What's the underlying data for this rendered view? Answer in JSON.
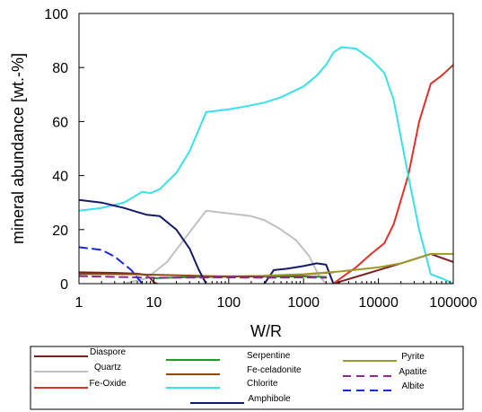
{
  "chart_data": {
    "type": "line",
    "xlabel": "W/R",
    "ylabel": "mineral abundance [wt.-%]",
    "x_scale": "log",
    "xlim": [
      1,
      100000
    ],
    "ylim": [
      0,
      100
    ],
    "x_ticks": [
      1,
      10,
      100,
      1000,
      10000,
      100000
    ],
    "x_tick_labels": [
      "1",
      "10",
      "100",
      "1000",
      "10000",
      "100000"
    ],
    "y_ticks": [
      0,
      20,
      40,
      60,
      80,
      100
    ],
    "y_tick_labels": [
      "0",
      "20",
      "40",
      "60",
      "80",
      "100"
    ],
    "grid": false,
    "legend_position": "bottom",
    "series": [
      {
        "name": "Diaspore",
        "color": "#7b2020",
        "dash": "solid",
        "points": [
          [
            1,
            4.2
          ],
          [
            3,
            4
          ],
          [
            6,
            3.7
          ],
          [
            8,
            3.2
          ],
          [
            9,
            2
          ],
          [
            10,
            0.5
          ],
          [
            11,
            0
          ]
        ],
        "points2": [
          [
            2500,
            0
          ],
          [
            5000,
            2.5
          ],
          [
            10000,
            5
          ],
          [
            20000,
            7.5
          ],
          [
            50000,
            11
          ],
          [
            100000,
            8
          ]
        ]
      },
      {
        "name": "Quartz",
        "color": "#c0c0c0",
        "dash": "solid",
        "points": [
          [
            4,
            0
          ],
          [
            8,
            2
          ],
          [
            15,
            8
          ],
          [
            30,
            19
          ],
          [
            50,
            27
          ],
          [
            100,
            26
          ],
          [
            200,
            25
          ],
          [
            300,
            23.5
          ],
          [
            500,
            20
          ],
          [
            800,
            16
          ],
          [
            1200,
            10
          ],
          [
            1600,
            3
          ],
          [
            2000,
            0
          ]
        ]
      },
      {
        "name": "Fe-Oxide",
        "color": "#e0302a",
        "dash": "solid",
        "points": [
          [
            2500,
            0
          ],
          [
            3500,
            3
          ],
          [
            5000,
            6
          ],
          [
            8000,
            11
          ],
          [
            12000,
            15
          ],
          [
            16000,
            22
          ],
          [
            25000,
            40
          ],
          [
            35000,
            60
          ],
          [
            50000,
            74
          ],
          [
            70000,
            77
          ],
          [
            100000,
            81
          ]
        ]
      },
      {
        "name": "Serpentine",
        "color": "#1f9a2a",
        "dash": "solid",
        "points": [
          [
            10,
            2
          ],
          [
            20,
            2.3
          ],
          [
            40,
            2.5
          ],
          [
            50,
            2.5
          ],
          [
            100,
            2.6
          ],
          [
            200,
            2.7
          ],
          [
            300,
            2.6
          ],
          [
            1000,
            2.7
          ],
          [
            2000,
            2.5
          ]
        ]
      },
      {
        "name": "Fe-celadonite",
        "color": "#8a4a10",
        "dash": "solid",
        "points": [
          [
            1,
            3.6
          ],
          [
            5,
            3.5
          ],
          [
            10,
            3.3
          ],
          [
            30,
            3
          ],
          [
            50,
            2.8
          ],
          [
            100,
            2.7
          ],
          [
            300,
            2.8
          ],
          [
            700,
            3
          ],
          [
            1500,
            3.8
          ],
          [
            2500,
            4.2
          ]
        ]
      },
      {
        "name": "Chlorite",
        "color": "#3ae0e8",
        "dash": "solid",
        "points": [
          [
            1,
            27
          ],
          [
            2,
            28
          ],
          [
            4,
            30
          ],
          [
            7,
            34
          ],
          [
            9,
            33.5
          ],
          [
            12,
            35
          ],
          [
            20,
            41
          ],
          [
            30,
            49
          ],
          [
            50,
            63.5
          ],
          [
            100,
            64.5
          ],
          [
            200,
            66
          ],
          [
            300,
            67
          ],
          [
            500,
            69
          ],
          [
            1000,
            73
          ],
          [
            1500,
            77
          ],
          [
            2000,
            81
          ],
          [
            2500,
            85.5
          ],
          [
            3200,
            87.5
          ],
          [
            5000,
            87
          ],
          [
            8000,
            83
          ],
          [
            12000,
            78
          ],
          [
            16000,
            68
          ],
          [
            25000,
            40
          ],
          [
            35000,
            20
          ],
          [
            50000,
            3.5
          ],
          [
            70000,
            2
          ],
          [
            100000,
            0
          ]
        ]
      },
      {
        "name": "Amphibole",
        "color": "#141a66",
        "dash": "solid",
        "points": [
          [
            1,
            31
          ],
          [
            2,
            30
          ],
          [
            4,
            28
          ],
          [
            6,
            26.5
          ],
          [
            8,
            25.5
          ],
          [
            12,
            25
          ],
          [
            20,
            20
          ],
          [
            30,
            13
          ],
          [
            40,
            5
          ],
          [
            50,
            0
          ]
        ],
        "points2": [
          [
            300,
            0
          ],
          [
            400,
            5
          ],
          [
            600,
            5.5
          ],
          [
            1000,
            6.5
          ],
          [
            1500,
            7.5
          ],
          [
            2000,
            7
          ],
          [
            2500,
            0
          ]
        ]
      },
      {
        "name": "Pyrite",
        "color": "#9a9a2a",
        "dash": "solid",
        "points": [
          [
            300,
            3
          ],
          [
            1000,
            3.5
          ],
          [
            3000,
            4.5
          ],
          [
            10000,
            6
          ],
          [
            20000,
            7.5
          ],
          [
            50000,
            11
          ],
          [
            100000,
            11
          ]
        ]
      },
      {
        "name": "Apatite",
        "color": "#8a2a8a",
        "dash": "dashed",
        "points": [
          [
            1,
            2.8
          ],
          [
            3,
            2.5
          ],
          [
            10,
            2.2
          ],
          [
            100,
            2.3
          ],
          [
            300,
            2.2
          ],
          [
            1000,
            2.3
          ],
          [
            2000,
            2.2
          ]
        ]
      },
      {
        "name": "Albite",
        "color": "#1a2ad8",
        "dash": "dashed",
        "points": [
          [
            1,
            13.5
          ],
          [
            2,
            12.5
          ],
          [
            3,
            10
          ],
          [
            5,
            5
          ],
          [
            7,
            0
          ]
        ]
      }
    ]
  }
}
